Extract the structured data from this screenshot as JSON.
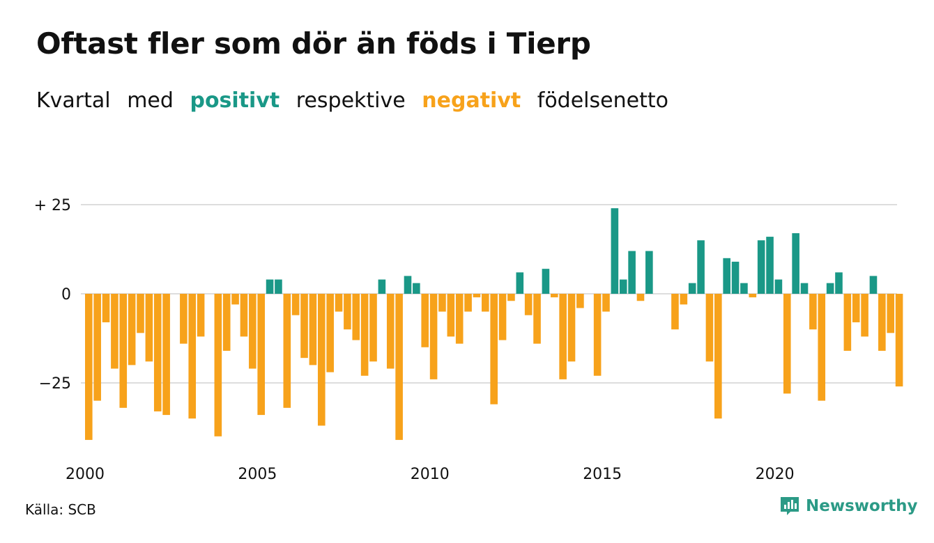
{
  "header": {
    "title": "Oftast fler som dör än föds i Tierp",
    "subtitle_words": [
      "Kvartal",
      "med",
      "positivt",
      "respektive",
      "negativt",
      "födelsenetto"
    ]
  },
  "footer": {
    "source": "Källa: SCB",
    "brand": "Newsworthy"
  },
  "colors": {
    "positive": "#1a9887",
    "negative": "#f7a21b",
    "grid": "#dddddd",
    "text": "#111111"
  },
  "chart_data": {
    "type": "bar",
    "start_year": 2000,
    "start_quarter": 1,
    "x_ticks": [
      "2000",
      "2005",
      "2010",
      "2015",
      "2020"
    ],
    "y_ticks": [
      {
        "value": 25,
        "label": "+ 25"
      },
      {
        "value": 0,
        "label": "0"
      },
      {
        "value": -25,
        "label": "−25"
      }
    ],
    "ylim": [
      -43,
      28
    ],
    "grid": true,
    "values": [
      -41,
      -30,
      -8,
      -21,
      -32,
      -20,
      -11,
      -19,
      -33,
      -34,
      0,
      -14,
      -35,
      -12,
      0,
      -40,
      -16,
      -3,
      -12,
      -21,
      -34,
      4,
      4,
      -32,
      -6,
      -18,
      -20,
      -37,
      -22,
      -5,
      -10,
      -13,
      -23,
      -19,
      4,
      -21,
      -41,
      5,
      3,
      -15,
      -24,
      -5,
      -12,
      -14,
      -5,
      -1,
      -5,
      -31,
      -13,
      -2,
      6,
      -6,
      -14,
      7,
      -1,
      -24,
      -19,
      -4,
      0,
      -23,
      -5,
      24,
      4,
      12,
      -2,
      12,
      0,
      0,
      -10,
      -3,
      3,
      15,
      -19,
      -35,
      10,
      9,
      3,
      -1,
      15,
      16,
      4,
      -28,
      17,
      3,
      -10,
      -30,
      3,
      6,
      -16,
      -8,
      -12,
      5,
      -16,
      -11,
      -26
    ]
  }
}
